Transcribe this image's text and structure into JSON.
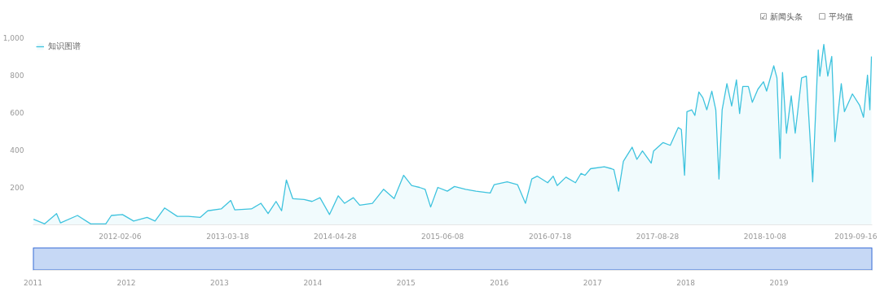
{
  "chart_data": {
    "type": "area",
    "legend": "top left",
    "annotations": [
      "☑ 新闻头条",
      "☐ 平均值"
    ],
    "xlim": [
      "2011-03-14",
      "2019-11-17"
    ],
    "xticks": [
      {
        "value": "2012-02-06",
        "label": "2012-02-06"
      },
      {
        "value": "2013-03-18",
        "label": "2013-03-18"
      },
      {
        "value": "2014-04-28",
        "label": "2014-04-28"
      },
      {
        "value": "2015-06-08",
        "label": "2015-06-08"
      },
      {
        "value": "2016-07-18",
        "label": "2016-07-18"
      },
      {
        "value": "2017-08-28",
        "label": "2017-08-28"
      },
      {
        "value": "2018-10-08",
        "label": "2018-10-08"
      },
      {
        "value": "2019-09-16",
        "label": "2019-09-16"
      }
    ],
    "x2lim": [
      2011,
      2020
    ],
    "x2ticks": [
      2011,
      2012,
      2013,
      2014,
      2015,
      2016,
      2017,
      2018,
      2019
    ],
    "ylim": [
      0,
      1000
    ],
    "yticks": [
      200,
      400,
      600,
      800,
      {
        "value": 1000,
        "label": "1,000"
      }
    ],
    "x": [
      "2011-03-16",
      "2011-04-27",
      "2011-06-11",
      "2011-06-26",
      "2011-08-29",
      "2011-10-18",
      "2011-12-14",
      "2012-01-04",
      "2012-02-15",
      "2012-03-28",
      "2012-05-18",
      "2012-06-17",
      "2012-07-23",
      "2012-09-09",
      "2012-10-21",
      "2012-12-05",
      "2013-01-02",
      "2013-02-22",
      "2013-03-30",
      "2013-04-14",
      "2013-06-16",
      "2013-07-22",
      "2013-08-18",
      "2013-09-17",
      "2013-10-08",
      "2013-10-26",
      "2013-11-19",
      "2014-01-01",
      "2014-01-31",
      "2014-03-02",
      "2014-04-07",
      "2014-05-10",
      "2014-06-03",
      "2014-07-06",
      "2014-07-30",
      "2014-09-16",
      "2014-10-28",
      "2014-12-07",
      "2015-01-12",
      "2015-02-11",
      "2015-03-13",
      "2015-04-03",
      "2015-04-24",
      "2015-05-21",
      "2015-06-26",
      "2015-07-23",
      "2015-09-03",
      "2015-10-12",
      "2015-12-05",
      "2015-12-20",
      "2016-02-07",
      "2016-03-17",
      "2016-04-16",
      "2016-05-10",
      "2016-05-31",
      "2016-07-09",
      "2016-07-30",
      "2016-08-14",
      "2016-09-16",
      "2016-10-22",
      "2016-11-12",
      "2016-11-27",
      "2016-12-18",
      "2017-02-08",
      "2017-03-07",
      "2017-03-16",
      "2017-04-03",
      "2017-04-21",
      "2017-05-24",
      "2017-06-11",
      "2017-07-02",
      "2017-08-04",
      "2017-08-13",
      "2017-09-18",
      "2017-10-15",
      "2017-11-14",
      "2017-11-26",
      "2017-12-08",
      "2017-12-17",
      "2018-01-04",
      "2018-01-16",
      "2018-01-31",
      "2018-02-15",
      "2018-03-02",
      "2018-03-21",
      "2018-04-05",
      "2018-04-17",
      "2018-04-29",
      "2018-05-17",
      "2018-06-04",
      "2018-06-22",
      "2018-07-04",
      "2018-07-16",
      "2018-08-06",
      "2018-08-21",
      "2018-09-11",
      "2018-10-02",
      "2018-10-14",
      "2018-11-10",
      "2018-11-22",
      "2018-12-04",
      "2018-12-13",
      "2018-12-28",
      "2019-01-15",
      "2019-01-30",
      "2019-02-23",
      "2019-03-13",
      "2019-04-06",
      "2019-04-27",
      "2019-05-03",
      "2019-05-18",
      "2019-06-02",
      "2019-06-17",
      "2019-06-29",
      "2019-07-23",
      "2019-08-04",
      "2019-09-03",
      "2019-09-30",
      "2019-10-15",
      "2019-10-30",
      "2019-11-08",
      "2019-11-14"
    ],
    "series": [
      {
        "name": "知识图谱",
        "color": "#3ec3de",
        "values": [
          30,
          5,
          60,
          10,
          50,
          5,
          5,
          50,
          55,
          20,
          40,
          20,
          90,
          45,
          45,
          40,
          75,
          85,
          130,
          80,
          85,
          115,
          60,
          125,
          75,
          240,
          140,
          135,
          125,
          145,
          55,
          155,
          115,
          145,
          105,
          115,
          190,
          140,
          265,
          210,
          200,
          190,
          95,
          200,
          180,
          205,
          190,
          180,
          170,
          215,
          230,
          215,
          115,
          245,
          260,
          225,
          260,
          210,
          255,
          225,
          275,
          265,
          300,
          310,
          300,
          295,
          180,
          340,
          415,
          350,
          395,
          330,
          395,
          440,
          425,
          520,
          510,
          265,
          605,
          615,
          585,
          710,
          680,
          615,
          715,
          615,
          245,
          615,
          755,
          635,
          775,
          595,
          740,
          740,
          655,
          725,
          765,
          715,
          850,
          785,
          355,
          815,
          490,
          690,
          490,
          785,
          795,
          230,
          935,
          795,
          965,
          795,
          900,
          445,
          755,
          605,
          700,
          640,
          575,
          800,
          615,
          900
        ]
      }
    ]
  }
}
